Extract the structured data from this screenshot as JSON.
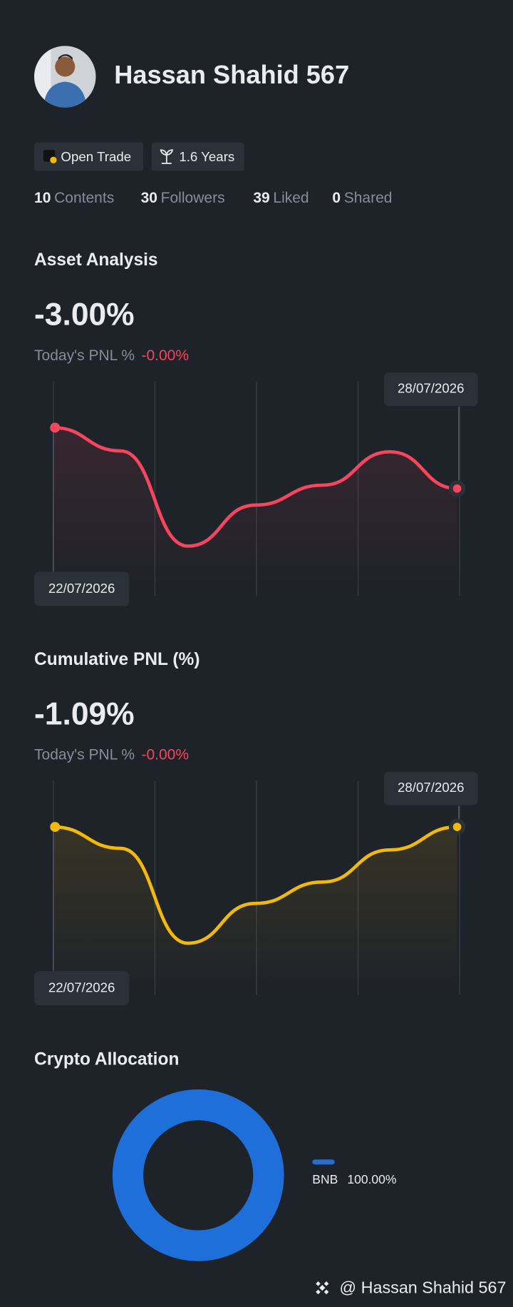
{
  "profile": {
    "name": "Hassan Shahid 567",
    "badges": [
      "Open Trade",
      "1.6 Years"
    ],
    "stats": [
      {
        "value": 10,
        "label": "Contents"
      },
      {
        "value": 30,
        "label": "Followers"
      },
      {
        "value": 39,
        "label": "Liked"
      },
      {
        "value": 0,
        "label": "Shared"
      }
    ],
    "footer": "@ Hassan Shahid 567"
  },
  "chart_data": [
    {
      "type": "line",
      "title": "Asset Analysis",
      "headline": "-3.00%",
      "today_label": "Today's PNL %",
      "today_value": "-0.00%",
      "x": [
        "22/07/2026",
        null,
        null,
        null,
        null,
        null,
        "28/07/2026"
      ],
      "values": [
        0,
        -0.76,
        -3.87,
        -2.53,
        -1.88,
        -0.79,
        -1.99
      ],
      "color": "#f6465d",
      "ylim": [
        -5.5,
        1.5
      ]
    },
    {
      "type": "line",
      "title": "Cumulative PNL (%)",
      "headline": "-1.09%",
      "today_label": "Today's PNL %",
      "today_value": "-0.00%",
      "x": [
        "22/07/2026",
        null,
        null,
        null,
        null,
        null,
        "28/07/2026"
      ],
      "values": [
        0,
        -0.7,
        -3.8,
        -2.5,
        -1.8,
        -0.75,
        0
      ],
      "color": "#f0b90b",
      "ylim": [
        -5.5,
        1.5
      ]
    },
    {
      "type": "pie",
      "title": "Crypto Allocation",
      "categories": [
        "BNB"
      ],
      "values": [
        100
      ],
      "value_labels": [
        "100.00%"
      ],
      "colors": [
        "#1e6fd9"
      ]
    }
  ]
}
